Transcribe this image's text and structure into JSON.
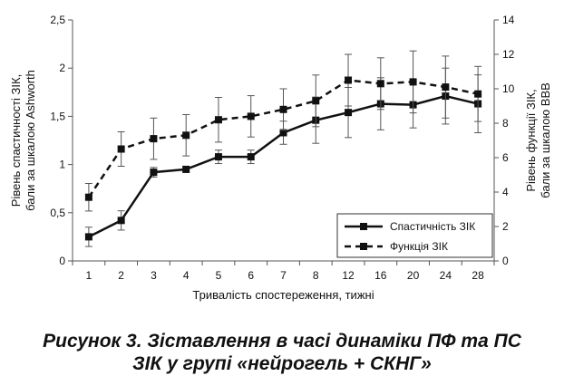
{
  "chart_data": {
    "type": "line",
    "categories": [
      "1",
      "2",
      "3",
      "4",
      "5",
      "6",
      "7",
      "8",
      "12",
      "16",
      "20",
      "24",
      "28"
    ],
    "xlabel": "Тривалість спостереження, тижні",
    "ylabel_left": "Рівень спастичності ЗІК, бали за шкалою Ashworth",
    "ylabel_left_lines": [
      "Рівень спастичності ЗІК,",
      "бали за шкалою Ashworth"
    ],
    "ylabel_right": "Рівень функції ЗІК, бали за шкалою BBB",
    "ylabel_right_lines": [
      "Рівень функції ЗІК,",
      "бали за шкалою BBB"
    ],
    "ylim_left": [
      0,
      2.5
    ],
    "yticks_left": [
      "0",
      "0,5",
      "1",
      "1,5",
      "2",
      "2,5"
    ],
    "ylim_right": [
      0,
      14
    ],
    "yticks_right": [
      "0",
      "2",
      "4",
      "6",
      "8",
      "10",
      "12",
      "14"
    ],
    "grid": false,
    "legend_position": "bottom-right",
    "series": [
      {
        "name": "Спастичність ЗІК",
        "axis": "left",
        "style": "solid",
        "color": "#111111",
        "values": [
          0.25,
          0.42,
          0.92,
          0.95,
          1.08,
          1.08,
          1.33,
          1.46,
          1.54,
          1.63,
          1.62,
          1.71,
          1.63
        ],
        "errors": [
          0.1,
          0.1,
          0.05,
          0.03,
          0.07,
          0.07,
          0.12,
          0.24,
          0.26,
          0.27,
          0.24,
          0.29,
          0.3
        ]
      },
      {
        "name": "Функція ЗІК",
        "axis": "right",
        "style": "dashed",
        "color": "#111111",
        "values": [
          3.7,
          6.5,
          7.1,
          7.3,
          8.2,
          8.4,
          8.8,
          9.3,
          10.5,
          10.3,
          10.4,
          10.1,
          9.7
        ],
        "errors": [
          0.8,
          1.0,
          1.2,
          1.2,
          1.3,
          1.2,
          1.2,
          1.5,
          1.5,
          1.5,
          1.8,
          1.8,
          1.6
        ]
      }
    ]
  },
  "caption": {
    "line1": "Рисунок 3. Зіставлення в часі динаміки ПФ та ПС",
    "line2": "ЗІК у групі «нейрогель + СКНГ»"
  }
}
